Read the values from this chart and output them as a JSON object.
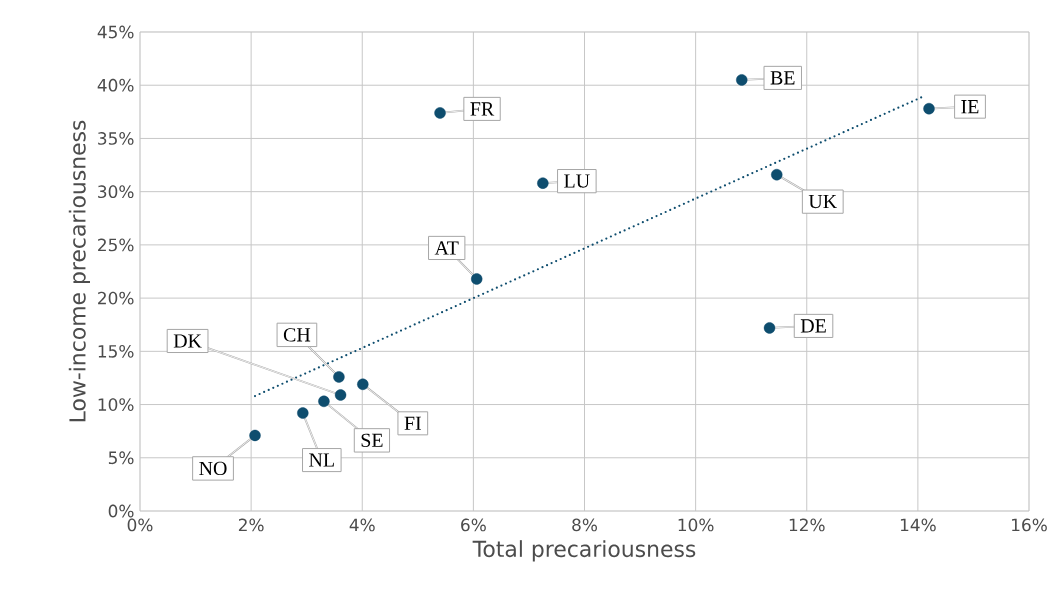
{
  "chart_data": {
    "type": "scatter",
    "xlabel": "Total precariousness",
    "ylabel": "Low-income precariousness",
    "grid": true,
    "xlim": [
      0,
      16
    ],
    "ylim": [
      0,
      45
    ],
    "xticks": [
      {
        "value": 0,
        "label": "0%"
      },
      {
        "value": 2,
        "label": "2%"
      },
      {
        "value": 4,
        "label": "4%"
      },
      {
        "value": 6,
        "label": "6%"
      },
      {
        "value": 8,
        "label": "8%"
      },
      {
        "value": 10,
        "label": "10%"
      },
      {
        "value": 12,
        "label": "12%"
      },
      {
        "value": 14,
        "label": "14%"
      },
      {
        "value": 16,
        "label": "16%"
      }
    ],
    "yticks": [
      {
        "value": 0,
        "label": "0%"
      },
      {
        "value": 5,
        "label": "5%"
      },
      {
        "value": 10,
        "label": "10%"
      },
      {
        "value": 15,
        "label": "15%"
      },
      {
        "value": 20,
        "label": "20%"
      },
      {
        "value": 25,
        "label": "25%"
      },
      {
        "value": 30,
        "label": "30%"
      },
      {
        "value": 35,
        "label": "35%"
      },
      {
        "value": 40,
        "label": "40%"
      },
      {
        "value": 45,
        "label": "45%"
      }
    ],
    "series": [
      {
        "color": "#0e4d6e",
        "marker": "circle",
        "x": [
          2.07,
          2.93,
          3.31,
          3.61,
          3.58,
          4.01,
          5.4,
          7.25,
          6.06,
          10.83,
          14.2,
          11.46,
          11.33
        ],
        "values": [
          7.1,
          9.2,
          10.3,
          10.9,
          12.6,
          11.9,
          37.4,
          30.8,
          21.8,
          40.5,
          37.8,
          31.6,
          17.2
        ]
      },
      {
        "type": "line",
        "color": "#0e4d6e",
        "line_style": "dotted",
        "marker": "none",
        "x": [
          2.07,
          14.08
        ],
        "values": [
          10.8,
          38.9
        ]
      }
    ],
    "annotations": [
      {
        "text": "NO",
        "x": 2.07,
        "y": 7.1
      },
      {
        "text": "NL",
        "x": 2.93,
        "y": 9.2
      },
      {
        "text": "SE",
        "x": 3.31,
        "y": 10.3
      },
      {
        "text": "DK",
        "x": 3.61,
        "y": 10.9
      },
      {
        "text": "CH",
        "x": 3.58,
        "y": 12.6
      },
      {
        "text": "FI",
        "x": 4.01,
        "y": 11.9
      },
      {
        "text": "FR",
        "x": 5.4,
        "y": 37.4
      },
      {
        "text": "LU",
        "x": 7.25,
        "y": 30.8
      },
      {
        "text": "AT",
        "x": 6.06,
        "y": 21.8
      },
      {
        "text": "BE",
        "x": 10.83,
        "y": 40.5
      },
      {
        "text": "IE",
        "x": 14.2,
        "y": 37.8
      },
      {
        "text": "UK",
        "x": 11.46,
        "y": 31.6
      },
      {
        "text": "DE",
        "x": 11.33,
        "y": 17.2
      }
    ]
  }
}
